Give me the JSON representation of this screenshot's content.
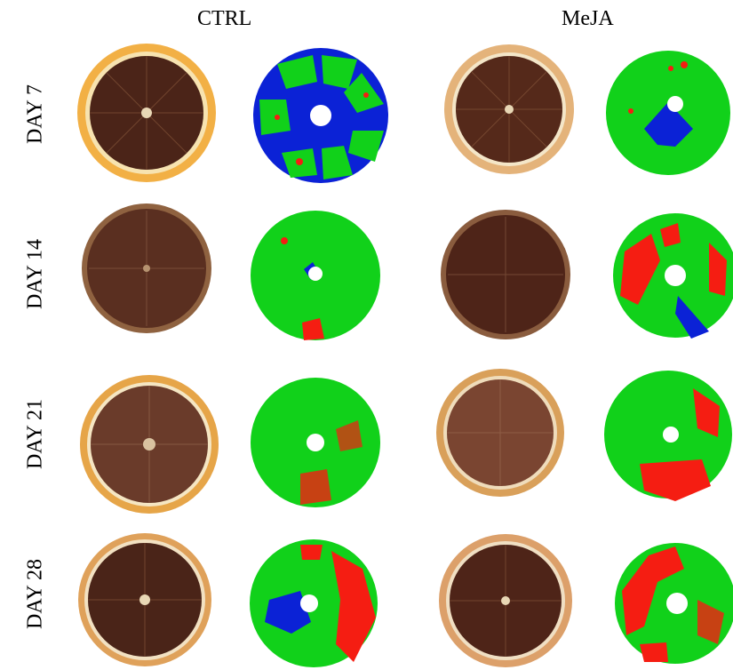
{
  "columns": [
    {
      "key": "ctrl",
      "label": "CTRL"
    },
    {
      "key": "meja",
      "label": "MeJA"
    }
  ],
  "rows": [
    {
      "key": "day7",
      "label": "DAY 7",
      "red": {
        "ctrl": 0.05,
        "meja": 0.06
      },
      "blue": {
        "ctrl": 0.55,
        "meja": 0.15
      }
    },
    {
      "key": "day14",
      "label": "DAY 14",
      "red": {
        "ctrl": 0.06,
        "meja": 0.3
      },
      "blue": {
        "ctrl": 0.02,
        "meja": 0.08
      }
    },
    {
      "key": "day21",
      "label": "DAY 21",
      "red": {
        "ctrl": 0.15,
        "meja": 0.35
      },
      "blue": {
        "ctrl": 0.01,
        "meja": 0.01
      }
    },
    {
      "key": "day28",
      "label": "DAY 28",
      "red": {
        "ctrl": 0.35,
        "meja": 0.45
      },
      "blue": {
        "ctrl": 0.12,
        "meja": 0.01
      }
    }
  ],
  "colors": {
    "segment_green": "#11d11a",
    "segment_red": "#f51d12",
    "segment_blue": "#0b22d6",
    "peel_orange": "#e8a23a",
    "flesh_dark": "#4a2316"
  }
}
